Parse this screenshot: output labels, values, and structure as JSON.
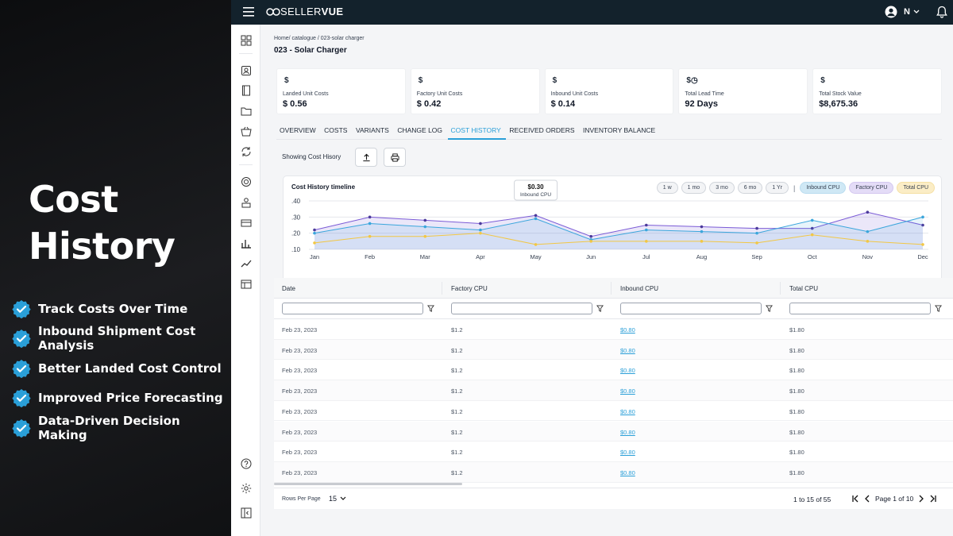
{
  "promo": {
    "headline_line1": "Cost",
    "headline_line2": "History",
    "features": [
      "Track Costs Over Time",
      "Inbound Shipment Cost Analysis",
      "Better Landed Cost Control",
      "Improved Price Forecasting",
      "Data-Driven Decision Making"
    ],
    "check_color": "#2a9fd8"
  },
  "topbar": {
    "logo_main": "SELLER",
    "logo_bold": "VUE",
    "user_initial": "N",
    "bg_color": "#13222c"
  },
  "rail": {
    "icons": [
      "grid-icon",
      "profile-icon",
      "book-icon",
      "folder-icon",
      "basket-icon",
      "sync-icon",
      "target-icon",
      "person-box-icon",
      "card-icon",
      "bar-chart-icon",
      "trend-icon",
      "table-icon",
      "help-icon",
      "settings-icon",
      "collapse-icon"
    ]
  },
  "page": {
    "breadcrumb": "Home/ catalogue  / 023-solar charger",
    "title": "023 - Solar Charger"
  },
  "cards": [
    {
      "symbol": "$",
      "label": "Landed Unit Costs",
      "value": "$ 0.56"
    },
    {
      "symbol": "$",
      "label": "Factory Unit Costs",
      "value": "$ 0.42"
    },
    {
      "symbol": "$",
      "label": "Inbound Unit Costs",
      "value": "$ 0.14"
    },
    {
      "symbol": "$◷",
      "label": "Total Lead Time",
      "value": "92 Days"
    },
    {
      "symbol": "$",
      "label": "Total Stock Value",
      "value": "$8,675.36"
    }
  ],
  "tabs": [
    "OVERVIEW",
    "COSTS",
    "VARIANTS",
    "CHANGE LOG",
    "COST HISTORY",
    "RECEIVED ORDERS",
    "INVENTORY BALANCE"
  ],
  "active_tab": "COST HISTORY",
  "toolbar": {
    "showing_label": "Showing Cost Hisory"
  },
  "chart": {
    "title": "Cost History timeline",
    "ranges": [
      "1 w",
      "1 mo",
      "3 mo",
      "6 mo",
      "1 Yr"
    ],
    "legend": [
      "Inbound CPU",
      "Factory CPU",
      "Total CPU"
    ],
    "tooltip_value": "$0.30",
    "tooltip_label": "Inbound CPU"
  },
  "chart_data": {
    "type": "line",
    "title": "Cost History timeline",
    "categories": [
      "Jan",
      "Feb",
      "Mar",
      "Apr",
      "May",
      "Jun",
      "Jul",
      "Aug",
      "Sep",
      "Oct",
      "Nov",
      "Dec"
    ],
    "y_ticks": [
      ".40",
      ".30",
      ".20",
      ".10"
    ],
    "ylim": [
      0.1,
      0.4
    ],
    "grid": true,
    "legend_position": "top-right",
    "series": [
      {
        "name": "Factory CPU",
        "color": "#7b5bd6",
        "values": [
          0.22,
          0.3,
          0.28,
          0.26,
          0.31,
          0.18,
          0.25,
          0.24,
          0.23,
          0.23,
          0.33,
          0.25
        ]
      },
      {
        "name": "Inbound CPU",
        "color": "#3aa6dc",
        "values": [
          0.2,
          0.26,
          0.24,
          0.22,
          0.29,
          0.16,
          0.22,
          0.21,
          0.2,
          0.28,
          0.21,
          0.3
        ]
      },
      {
        "name": "Total CPU",
        "color": "#f2c744",
        "values": [
          0.14,
          0.18,
          0.18,
          0.2,
          0.13,
          0.15,
          0.15,
          0.15,
          0.14,
          0.19,
          0.15,
          0.13
        ]
      }
    ]
  },
  "table": {
    "columns": [
      "Date",
      "Factory CPU",
      "Inbound CPU",
      "Total CPU"
    ],
    "rows": [
      [
        "Feb 23, 2023",
        "$1.2",
        "$0.80",
        "$1.80"
      ],
      [
        "Feb 23, 2023",
        "$1.2",
        "$0.80",
        "$1.80"
      ],
      [
        "Feb 23, 2023",
        "$1.2",
        "$0.80",
        "$1.80"
      ],
      [
        "Feb 23, 2023",
        "$1.2",
        "$0.80",
        "$1.80"
      ],
      [
        "Feb 23, 2023",
        "$1.2",
        "$0.80",
        "$1.80"
      ],
      [
        "Feb 23, 2023",
        "$1.2",
        "$0.80",
        "$1.80"
      ],
      [
        "Feb 23, 2023",
        "$1.2",
        "$0.80",
        "$1.80"
      ],
      [
        "Feb 23, 2023",
        "$1.2",
        "$0.80",
        "$1.80"
      ]
    ]
  },
  "footer": {
    "rows_per_page_label": "Rows Per Page",
    "rows_per_page_value": "15",
    "range": "1 to 15 of 55",
    "page_label": "Page 1 of 10"
  }
}
